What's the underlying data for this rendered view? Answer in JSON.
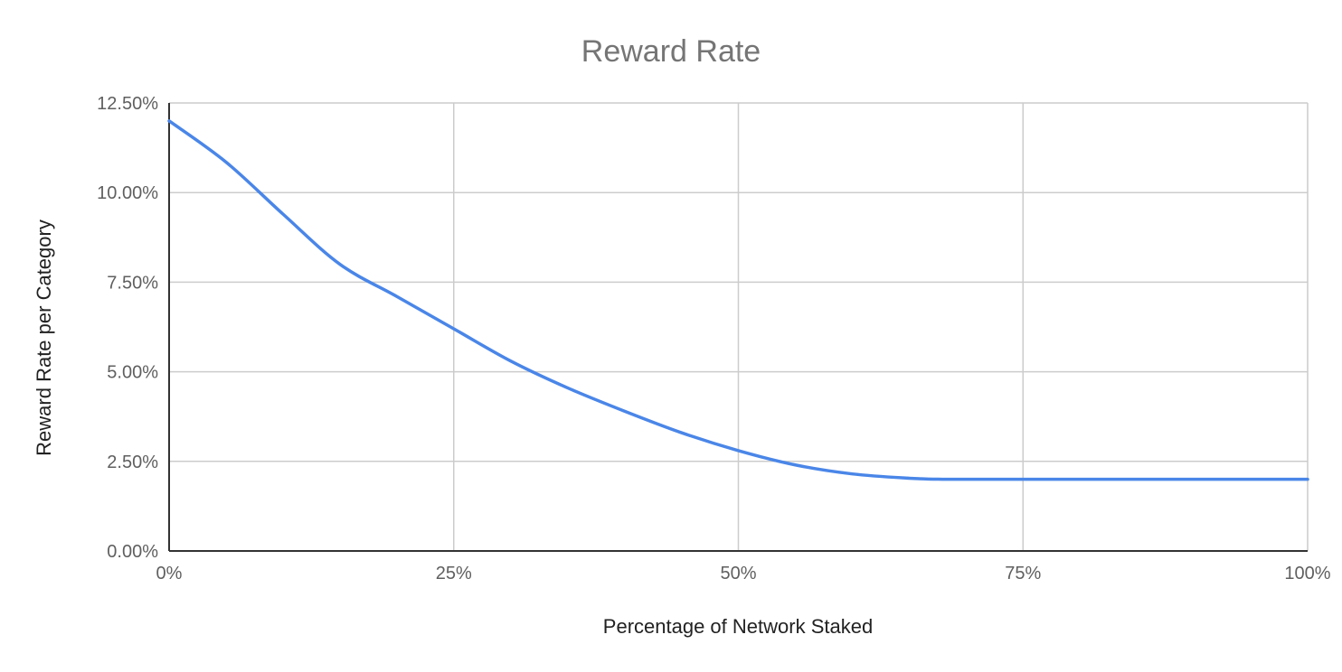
{
  "chart_data": {
    "type": "line",
    "title": "Reward Rate",
    "xlabel": "Percentage of Network Staked",
    "ylabel": "Reward Rate per Category",
    "xlim": [
      0,
      100
    ],
    "ylim": [
      0,
      12.5
    ],
    "x_ticks": [
      0,
      25,
      50,
      75,
      100
    ],
    "x_tick_labels": [
      "0%",
      "25%",
      "50%",
      "75%",
      "100%"
    ],
    "y_ticks": [
      0,
      2.5,
      5,
      7.5,
      10,
      12.5
    ],
    "y_tick_labels": [
      "0.00%",
      "2.50%",
      "5.00%",
      "7.50%",
      "10.00%",
      "12.50%"
    ],
    "grid": true,
    "legend": "none",
    "colors": {
      "series": "#4a86e8"
    },
    "series": [
      {
        "x": [
          0,
          5,
          10,
          15,
          20,
          25,
          30,
          35,
          40,
          45,
          50,
          55,
          60,
          65,
          68,
          70,
          75,
          80,
          85,
          90,
          95,
          100
        ],
        "values": [
          12.0,
          10.85,
          9.4,
          8.0,
          7.1,
          6.2,
          5.3,
          4.55,
          3.9,
          3.3,
          2.8,
          2.4,
          2.15,
          2.03,
          2.0,
          2.0,
          2.0,
          2.0,
          2.0,
          2.0,
          2.0,
          2.0
        ]
      }
    ]
  }
}
